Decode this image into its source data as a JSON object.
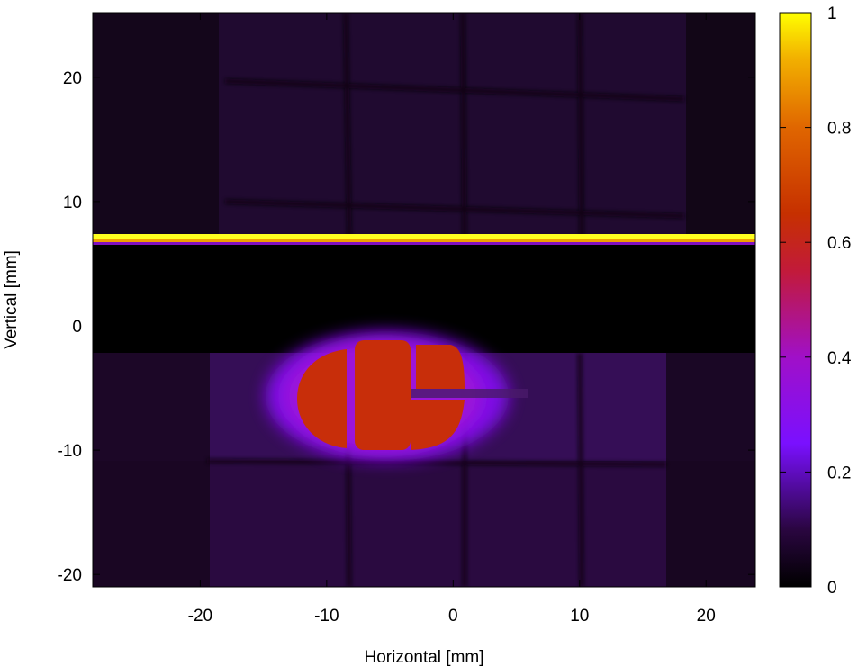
{
  "chart_data": {
    "type": "heatmap",
    "title": "",
    "xlabel": "Horizontal [mm]",
    "ylabel": "Vertical [mm]",
    "xlim": [
      -28.5,
      23.9
    ],
    "ylim": [
      -21.0,
      25.2
    ],
    "x_ticks": [
      -20,
      -10,
      0,
      10,
      20
    ],
    "y_ticks": [
      -20,
      -10,
      0,
      10,
      20
    ],
    "x_tick_labels": [
      "-20",
      "-10",
      "0",
      "10",
      "20"
    ],
    "y_tick_labels": [
      "-20",
      "-10",
      "0",
      "10",
      "20"
    ],
    "colorbar": {
      "range": [
        0,
        1
      ],
      "ticks": [
        0,
        0.2,
        0.4,
        0.6,
        0.8,
        1
      ],
      "tick_labels": [
        "0",
        "0.2",
        "0.4",
        "0.6",
        "0.8",
        "1"
      ],
      "colormap": [
        "#000000",
        "#2d0640",
        "#5a0a8c",
        "#8c10ff",
        "#c81a9a",
        "#c42a00",
        "#e65a00",
        "#f09a00",
        "#ffe000",
        "#ffff00"
      ]
    },
    "regions": [
      {
        "name": "background",
        "value": 0.05
      },
      {
        "name": "bright-stripe",
        "value": 1.0,
        "y_range": [
          6.5,
          7.2
        ],
        "x_range": [
          -28.5,
          23.9
        ]
      },
      {
        "name": "dark-band",
        "value": 0.0,
        "y_range": [
          -2.2,
          6.2
        ],
        "x_range": [
          -28.5,
          23.9
        ]
      },
      {
        "name": "lower-glow",
        "value": 0.1,
        "y_range": [
          -21.0,
          -2.2
        ],
        "x_range": [
          -28.5,
          23.9
        ]
      },
      {
        "name": "hot-spot",
        "value": 0.5,
        "center": [
          -5.0,
          -5.0
        ],
        "size": [
          17.0,
          10.0
        ]
      }
    ]
  }
}
